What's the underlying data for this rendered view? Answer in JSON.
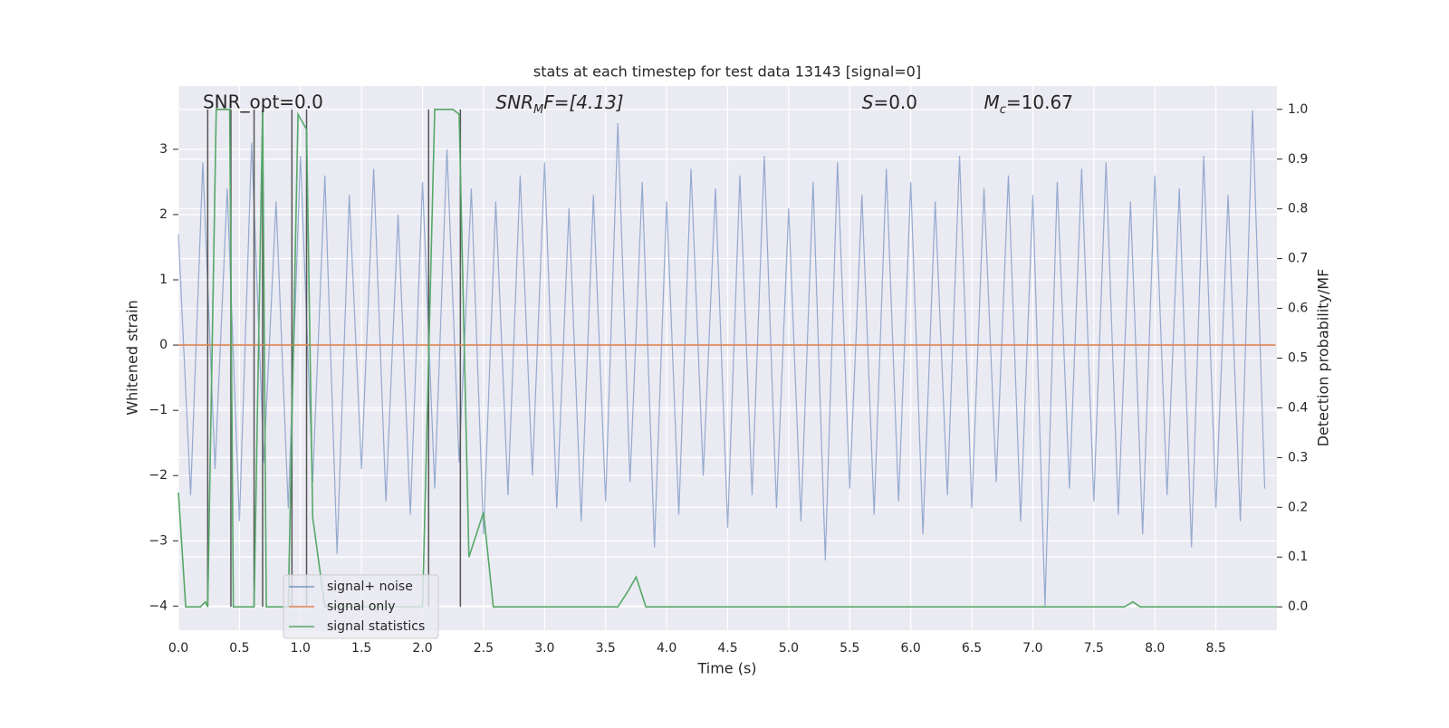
{
  "chart_data": {
    "type": "line",
    "title": "stats at each timestep for test data 13143 [signal=0]",
    "xlabel": "Time (s)",
    "ylabel": "Whitened strain",
    "y2label": "Detection probability/MF",
    "annotations": [
      {
        "text": "SNR_opt=0.0",
        "x": 0.2,
        "italic": false
      },
      {
        "parts": [
          "SNR",
          "M",
          "F=[4.13]"
        ],
        "x": 2.6,
        "italic": true
      },
      {
        "parts": [
          "S",
          "",
          "=0.0"
        ],
        "x": 5.6,
        "italic": true
      },
      {
        "parts": [
          "M",
          "c",
          "=10.67"
        ],
        "x": 6.6,
        "italic": true
      }
    ],
    "xlim": [
      0,
      9.0
    ],
    "ylim": [
      -4.37,
      3.97
    ],
    "y2lim": [
      -0.047,
      1.047
    ],
    "xticks": [
      {
        "value": 0,
        "label": "0.0"
      },
      0.5,
      {
        "value": 1,
        "label": "1.0"
      },
      1.5,
      {
        "value": 2,
        "label": "2.0"
      },
      2.5,
      {
        "value": 3,
        "label": "3.0"
      },
      3.5,
      {
        "value": 4,
        "label": "4.0"
      },
      4.5,
      {
        "value": 5,
        "label": "5.0"
      },
      5.5,
      {
        "value": 6,
        "label": "6.0"
      },
      6.5,
      {
        "value": 7,
        "label": "7.0"
      },
      7.5,
      {
        "value": 8,
        "label": "8.0"
      },
      8.5
    ],
    "yticks": [
      {
        "value": -4,
        "label": "−4"
      },
      {
        "value": -3,
        "label": "−3"
      },
      {
        "value": -2,
        "label": "−2"
      },
      {
        "value": -1,
        "label": "−1"
      },
      0,
      1,
      2,
      3
    ],
    "y2ticks": [
      {
        "value": 0,
        "label": "0.0"
      },
      0.1,
      0.2,
      0.3,
      0.4,
      0.5,
      0.6,
      0.7,
      0.8,
      0.9,
      {
        "value": 1,
        "label": "1.0"
      }
    ],
    "grid": true,
    "legend": "lower left",
    "markers": {
      "x": [
        0.24,
        0.43,
        0.62,
        0.69,
        0.93,
        1.05,
        2.05,
        2.31
      ],
      "range": [
        0,
        1
      ],
      "color": "#555555"
    },
    "series": [
      {
        "name": "signal+ noise",
        "color": "#4c72b0",
        "x": [
          0.0,
          0.1,
          0.2,
          0.3,
          0.4,
          0.5,
          0.6,
          0.7,
          0.8,
          0.9,
          1.0,
          1.1,
          1.2,
          1.3,
          1.4,
          1.5,
          1.6,
          1.7,
          1.8,
          1.9,
          2.0,
          2.1,
          2.2,
          2.3,
          2.4,
          2.5,
          2.6,
          2.7,
          2.8,
          2.9,
          3.0,
          3.1,
          3.2,
          3.3,
          3.4,
          3.5,
          3.6,
          3.7,
          3.8,
          3.9,
          4.0,
          4.1,
          4.2,
          4.3,
          4.4,
          4.5,
          4.6,
          4.7,
          4.8,
          4.9,
          5.0,
          5.1,
          5.2,
          5.3,
          5.4,
          5.5,
          5.6,
          5.7,
          5.8,
          5.9,
          6.0,
          6.1,
          6.2,
          6.3,
          6.4,
          6.5,
          6.6,
          6.7,
          6.8,
          6.9,
          7.0,
          7.1,
          7.2,
          7.3,
          7.4,
          7.5,
          7.6,
          7.7,
          7.8,
          7.9,
          8.0,
          8.1,
          8.2,
          8.3,
          8.4,
          8.5,
          8.6,
          8.7,
          8.8,
          8.9
        ],
        "values": [
          1.7,
          -2.3,
          2.8,
          -1.9,
          2.4,
          -2.7,
          3.1,
          -1.8,
          2.2,
          -2.5,
          2.9,
          -2.1,
          2.6,
          -3.2,
          2.3,
          -1.9,
          2.7,
          -2.4,
          2.0,
          -2.6,
          2.5,
          -2.2,
          3.0,
          -1.8,
          2.4,
          -2.9,
          2.2,
          -2.3,
          2.6,
          -2.0,
          2.8,
          -2.5,
          2.1,
          -2.7,
          2.3,
          -2.4,
          3.4,
          -2.1,
          2.5,
          -3.1,
          2.2,
          -2.6,
          2.7,
          -2.0,
          2.4,
          -2.8,
          2.6,
          -2.3,
          2.9,
          -2.5,
          2.1,
          -2.7,
          2.5,
          -3.3,
          2.8,
          -2.2,
          2.3,
          -2.6,
          2.7,
          -2.4,
          2.5,
          -2.9,
          2.2,
          -2.3,
          2.9,
          -2.5,
          2.4,
          -2.1,
          2.6,
          -2.7,
          2.3,
          -4.0,
          2.5,
          -2.2,
          2.7,
          -2.4,
          2.8,
          -2.6,
          2.2,
          -2.9,
          2.6,
          -2.3,
          2.4,
          -3.1,
          2.9,
          -2.5,
          2.3,
          -2.7,
          3.6,
          -2.2
        ]
      },
      {
        "name": "signal only",
        "color": "#dd8452",
        "x": [
          0,
          8.99
        ],
        "values": [
          0,
          0
        ]
      },
      {
        "name": "signal statistics",
        "color": "#55a868",
        "axis": "y2",
        "x": [
          0,
          0.06,
          0.18,
          0.22,
          0.24,
          0.31,
          0.42,
          0.45,
          0.62,
          0.69,
          0.72,
          0.9,
          0.98,
          1.05,
          1.1,
          1.2,
          2.0,
          2.1,
          2.25,
          2.3,
          2.38,
          2.5,
          2.58,
          3.6,
          3.68,
          3.75,
          3.83,
          7.75,
          7.82,
          7.88,
          9.0
        ],
        "values": [
          0.23,
          0,
          0,
          0.01,
          0,
          1.0,
          1.0,
          0,
          0,
          1.0,
          0,
          0,
          0.99,
          0.96,
          0.18,
          0,
          0,
          1.0,
          1.0,
          0.99,
          0.1,
          0.19,
          0,
          0,
          0.03,
          0.06,
          0,
          0,
          0.01,
          0,
          0
        ]
      }
    ]
  }
}
